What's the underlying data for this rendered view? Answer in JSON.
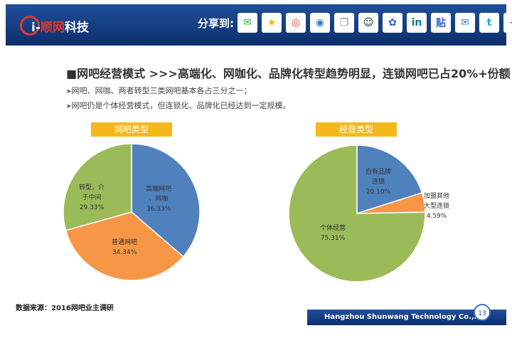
{
  "header": {
    "logo_prefix": "i-",
    "logo_brand": "顺网",
    "logo_suffix": "科技",
    "share_label": "分享到:",
    "share_icons": [
      "wechat-icon",
      "qzone-icon",
      "weibo-icon",
      "tencent-weibo-icon",
      "copy-icon",
      "qq-icon",
      "baidu-icon",
      "linkedin-icon",
      "tieba-icon",
      "email-icon",
      "twitter-icon",
      "more-icon"
    ],
    "share_glyphs": [
      "✉",
      "★",
      "◎",
      "◉",
      "❐",
      "☺",
      "✿",
      "in",
      "贴",
      "✉",
      "t",
      "+"
    ]
  },
  "title": "■网吧经营模式  >>>高端化、网咖化、品牌化转型趋势明显，连锁网吧已占20%+份额",
  "bullets": [
    "网吧、网咖、两者转型三类网吧基本各占三分之一；",
    "网吧仍是个体经营模式，但连锁化、品牌化已经达到一定规模。"
  ],
  "chart_data": [
    {
      "type": "pie",
      "title": "网吧类型",
      "slices": [
        {
          "label": "高端网吧、网咖",
          "value": 36.33,
          "color": "#4f81bd"
        },
        {
          "label": "普通网吧",
          "value": 34.34,
          "color": "#f79646"
        },
        {
          "label": "转型，介于中间",
          "value": 29.33,
          "color": "#9bbb59"
        }
      ]
    },
    {
      "type": "pie",
      "title": "经营类型",
      "slices": [
        {
          "label": "自有品牌连锁",
          "value": 20.1,
          "color": "#4f81bd"
        },
        {
          "label": "加盟其他大型连锁",
          "value": 4.59,
          "color": "#f79646"
        },
        {
          "label": "个体经营",
          "value": 75.31,
          "color": "#9bbb59"
        }
      ]
    }
  ],
  "source": "数据来源：2016网吧业主调研",
  "footer": "Hangzhou Shunwang Technology Co.,Ltd",
  "page_number": "13"
}
